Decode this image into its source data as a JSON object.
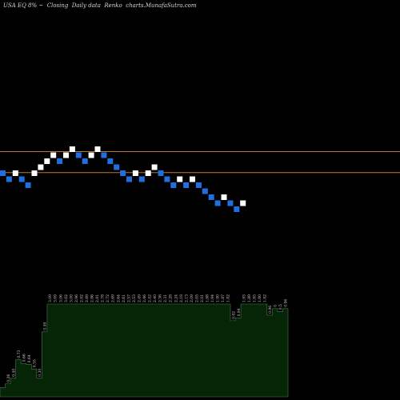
{
  "header": {
    "symbol": "USA EQ 8% ~",
    "closing": "Closing",
    "period": "Daily data",
    "chart_kind": "Renko",
    "site": "charts.MunafaSutra.com"
  },
  "colors": {
    "up_brick": "#ffffff",
    "down_brick": "#1f6fe0",
    "hline": "#b8782a",
    "volume_fill": "#062506",
    "volume_edge": "#4a7a4a",
    "label": "#cfcfcf"
  },
  "chart_data": {
    "type": "renko",
    "title": "",
    "xlabel": "",
    "ylabel": "",
    "brick_direction": [
      -1,
      -1,
      1,
      -1,
      -1,
      1,
      1,
      1,
      1,
      -1,
      1,
      1,
      -1,
      -1,
      1,
      1,
      -1,
      -1,
      -1,
      -1,
      -1,
      1,
      -1,
      1,
      1,
      -1,
      -1,
      -1,
      1,
      -1,
      1,
      -1,
      -1,
      -1,
      -1,
      1,
      -1,
      -1,
      1
    ],
    "brick_level": [
      0,
      -1,
      0,
      -1,
      -2,
      0,
      1,
      2,
      3,
      2,
      3,
      4,
      3,
      2,
      3,
      4,
      3,
      2,
      1,
      0,
      -1,
      0,
      -1,
      0,
      1,
      0,
      -1,
      -2,
      -1,
      -2,
      -1,
      -2,
      -3,
      -4,
      -5,
      -4,
      -5,
      -6,
      -5
    ],
    "horizontal_lines": [
      {
        "name": "upper-line",
        "level": 3.6
      },
      {
        "name": "lower-line",
        "level": 0.1
      }
    ],
    "volume_labels": [
      "",
      "0.26",
      "0.40",
      "0.73",
      "0.66",
      "0.64",
      "0.55",
      "0.30",
      "0.49",
      "3.09",
      "3.09",
      "3.06",
      "3.02",
      "3.00",
      "2.96",
      "2.92",
      "2.89",
      "2.86",
      "2.81",
      "2.78",
      "2.72",
      "2.69",
      "2.64",
      "2.61",
      "2.57",
      "2.53",
      "2.49",
      "2.46",
      "2.42",
      "2.40",
      "2.36",
      "2.31",
      "2.28",
      "2.24",
      "2.18",
      "2.13",
      "2.09",
      "2.05",
      "2.01",
      "1.98",
      "1.94",
      "1.90",
      "1.87",
      "1.82",
      "0.92",
      "0.94",
      "1.93",
      "1.89",
      "1.85",
      "1.80",
      "1.82",
      "0.96",
      "0",
      "0.5",
      "0.96"
    ],
    "volume_values": [
      0.1,
      0.14,
      0.2,
      0.4,
      0.36,
      0.35,
      0.3,
      0.2,
      0.7,
      1.0,
      1.0,
      1.0,
      1.0,
      1.0,
      1.0,
      1.0,
      1.0,
      1.0,
      1.0,
      1.0,
      1.0,
      1.0,
      1.0,
      1.0,
      1.0,
      1.0,
      1.0,
      1.0,
      1.0,
      1.0,
      1.0,
      1.0,
      1.0,
      1.0,
      1.0,
      1.0,
      1.0,
      1.0,
      1.0,
      1.0,
      1.0,
      1.0,
      1.0,
      1.0,
      0.82,
      0.85,
      1.0,
      1.0,
      1.0,
      1.0,
      1.0,
      0.88,
      0.95,
      0.92,
      0.95
    ]
  }
}
